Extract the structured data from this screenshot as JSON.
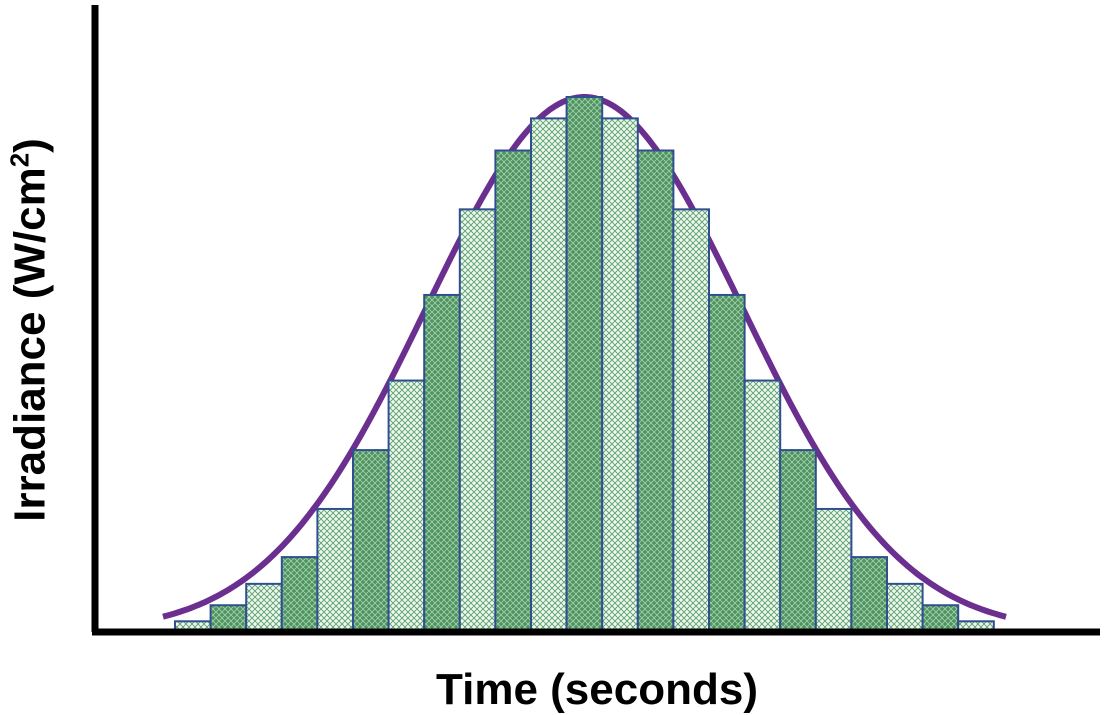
{
  "chart_data": {
    "type": "bar",
    "title": "",
    "xlabel": "Time (seconds)",
    "ylabel_main": "Irradiance (W/cm",
    "ylabel_sup": "2",
    "ylabel_end": ")",
    "values": [
      2,
      5,
      9,
      14,
      23,
      34,
      47,
      63,
      79,
      90,
      96,
      100,
      96,
      90,
      79,
      63,
      47,
      34,
      23,
      14,
      9,
      5,
      2
    ],
    "curve": "gaussian",
    "ylim": [
      0,
      100
    ],
    "grid": false,
    "colors": {
      "bar_dark": "#5a9a6b",
      "bar_light": "#d6ecd6",
      "bar_stroke": "#2f4f8f",
      "curve": "#6b2f8f",
      "axis": "#000000"
    }
  }
}
